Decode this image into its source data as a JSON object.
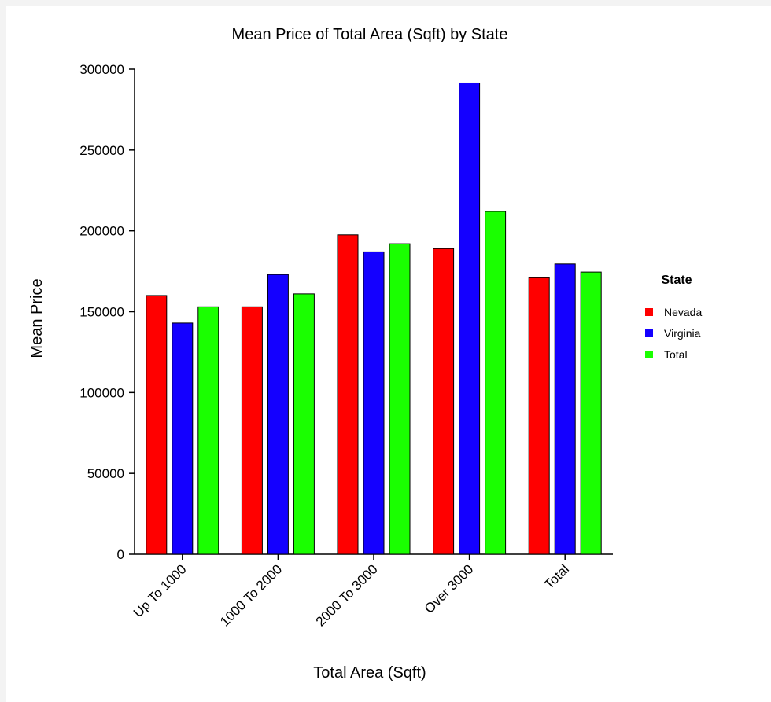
{
  "chart_data": {
    "type": "bar",
    "title": "Mean Price of Total Area (Sqft) by State",
    "xlabel": "Total Area (Sqft)",
    "ylabel": "Mean Price",
    "categories": [
      "Up To 1000",
      "1000 To 2000",
      "2000 To 3000",
      "Over 3000",
      "Total"
    ],
    "ylim": [
      0,
      300000
    ],
    "yticks": [
      0,
      50000,
      100000,
      150000,
      200000,
      250000,
      300000
    ],
    "grid": false,
    "legend": {
      "title": "State",
      "position": "right"
    },
    "series": [
      {
        "name": "Nevada",
        "color": "#ff0000",
        "values": [
          160000,
          153000,
          197500,
          189000,
          171000
        ]
      },
      {
        "name": "Virginia",
        "color": "#1400ff",
        "values": [
          143000,
          173000,
          187000,
          291500,
          179500
        ]
      },
      {
        "name": "Total",
        "color": "#1aff00",
        "values": [
          153000,
          161000,
          192000,
          212000,
          174500
        ]
      }
    ]
  }
}
